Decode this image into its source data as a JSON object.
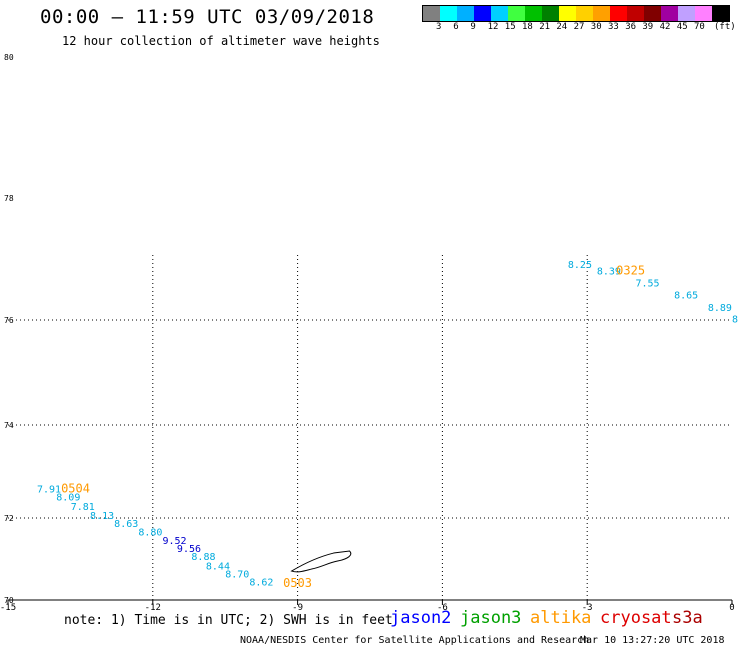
{
  "header": {
    "title": "00:00 – 11:59 UTC 03/09/2018",
    "subtitle": "12 hour collection of altimeter wave heights"
  },
  "colorbar": {
    "colors": [
      "#808080",
      "#00ffff",
      "#00b0ff",
      "#0000ff",
      "#00d0ff",
      "#40ff40",
      "#00c000",
      "#008000",
      "#ffff00",
      "#ffd000",
      "#ffa000",
      "#ff0000",
      "#c00000",
      "#800000",
      "#a000a0",
      "#c0a0ff",
      "#ff80ff",
      "#000000"
    ],
    "labels": [
      "3",
      "6",
      "9",
      "12",
      "15",
      "18",
      "21",
      "24",
      "27",
      "30",
      "33",
      "36",
      "39",
      "42",
      "45",
      "70"
    ],
    "unit": "(ft)"
  },
  "map": {
    "lon_ticks": [
      "-15",
      "-12",
      "-9",
      "-6",
      "-3",
      "0"
    ],
    "lat_ticks": [
      "80",
      "78",
      "76",
      "74",
      "72",
      "70"
    ],
    "lon_range": [
      -15,
      0
    ],
    "lat_range": [
      70,
      80
    ],
    "grid": "dotted",
    "tracks": [
      {
        "time_label": "0504",
        "time_lon": -13.9,
        "time_lat": 72.55,
        "points": [
          {
            "lon": -14.4,
            "lat": 72.55,
            "v": "7.91",
            "c": "#00aadd"
          },
          {
            "lon": -14.0,
            "lat": 72.38,
            "v": "8.09",
            "c": "#00aadd"
          },
          {
            "lon": -13.7,
            "lat": 72.17,
            "v": "7.81",
            "c": "#00aadd"
          },
          {
            "lon": -13.3,
            "lat": 71.97,
            "v": "8.13",
            "c": "#00aadd"
          },
          {
            "lon": -12.8,
            "lat": 71.78,
            "v": "8.63",
            "c": "#00aadd"
          },
          {
            "lon": -12.3,
            "lat": 71.57,
            "v": "8.80",
            "c": "#00aadd"
          },
          {
            "lon": -11.8,
            "lat": 71.37,
            "v": "9.52",
            "c": "#0000cc"
          },
          {
            "lon": -11.5,
            "lat": 71.17,
            "v": "9.56",
            "c": "#0000cc"
          },
          {
            "lon": -11.2,
            "lat": 70.97,
            "v": "8.88",
            "c": "#00aadd"
          },
          {
            "lon": -10.9,
            "lat": 70.75,
            "v": "8.44",
            "c": "#00aadd"
          },
          {
            "lon": -10.5,
            "lat": 70.55,
            "v": "8.70",
            "c": "#00aadd"
          },
          {
            "lon": -10.0,
            "lat": 70.35,
            "v": "8.62",
            "c": "#00aadd"
          }
        ]
      },
      {
        "time_label": "0503",
        "time_lon": -9.3,
        "time_lat": 70.32,
        "points": []
      },
      {
        "time_label": "0325",
        "time_lon": -2.4,
        "time_lat": 76.75,
        "points": [
          {
            "lon": -3.4,
            "lat": 76.85,
            "v": "8.25",
            "c": "#00aadd"
          },
          {
            "lon": -2.8,
            "lat": 76.75,
            "v": "8.39",
            "c": "#00aadd"
          },
          {
            "lon": -2.0,
            "lat": 76.55,
            "v": "7.55",
            "c": "#00aadd"
          },
          {
            "lon": -1.2,
            "lat": 76.35,
            "v": "8.65",
            "c": "#00aadd"
          },
          {
            "lon": -0.5,
            "lat": 76.15,
            "v": "8.89",
            "c": "#00aadd"
          },
          {
            "lon": 0.0,
            "lat": 75.95,
            "v": "8",
            "c": "#00aadd"
          }
        ]
      }
    ],
    "island_name": "jan-mayen-outline"
  },
  "footer": {
    "note": "note: 1) Time is in UTC; 2) SWH is in feet",
    "satellites": [
      {
        "name": "jason2",
        "color": "#0000ff"
      },
      {
        "name": "jason3",
        "color": "#00a000"
      },
      {
        "name": "altika",
        "color": "#ff9900"
      },
      {
        "name": "cryosat",
        "color": "#dd0000"
      },
      {
        "name": "s3a",
        "color": "#aa0000"
      }
    ],
    "credit": "NOAA/NESDIS Center for Satellite Applications and Research",
    "timestamp": "Mar 10 13:27:20 UTC 2018"
  }
}
